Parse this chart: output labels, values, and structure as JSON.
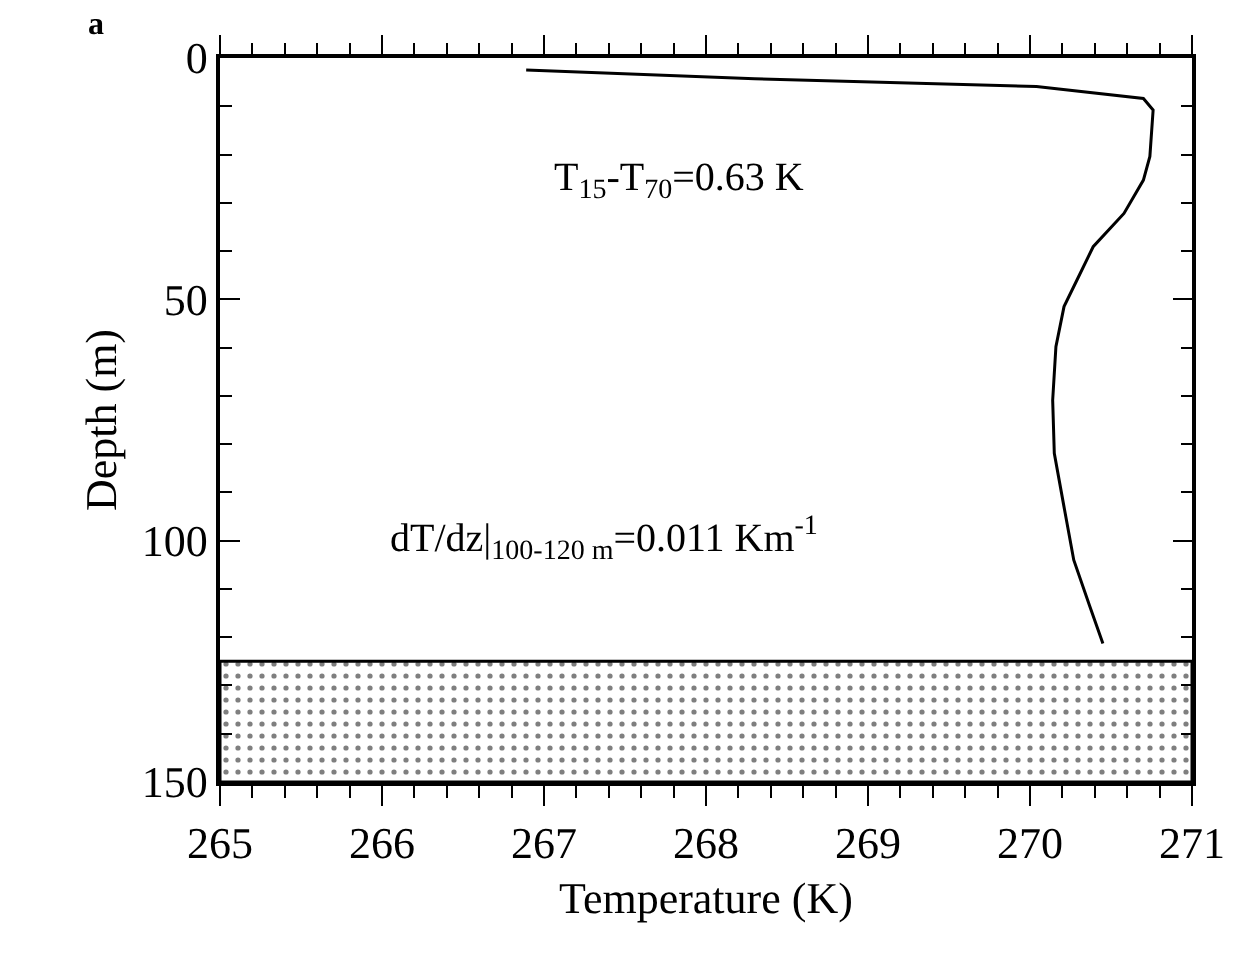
{
  "chart_data": {
    "type": "line",
    "xlabel": "Temperature (K)",
    "ylabel": "Depth (m)",
    "series": [
      {
        "color": "#000000",
        "x": [
          266.89,
          268.3,
          270.04,
          270.7,
          270.76,
          270.74,
          270.7,
          270.58,
          270.39,
          270.29,
          270.21,
          270.16,
          270.14,
          270.15,
          270.21,
          270.27,
          270.37,
          270.45
        ],
        "values": [
          2.5,
          4.3,
          5.9,
          8.4,
          10.8,
          20.4,
          25.3,
          32.2,
          39.1,
          46,
          51.5,
          59.8,
          70.9,
          81.9,
          93,
          104,
          113.7,
          121.3
        ]
      }
    ],
    "xlim": [
      265,
      271
    ],
    "ylim": [
      150,
      0
    ],
    "xticks": [
      265,
      {
        "value": 265.2,
        "label": null
      },
      {
        "value": 265.4,
        "label": null
      },
      {
        "value": 265.6,
        "label": null
      },
      {
        "value": 265.8,
        "label": null
      },
      266,
      {
        "value": 266.2,
        "label": null
      },
      {
        "value": 266.4,
        "label": null
      },
      {
        "value": 266.6,
        "label": null
      },
      {
        "value": 266.8,
        "label": null
      },
      267,
      {
        "value": 267.2,
        "label": null
      },
      {
        "value": 267.4,
        "label": null
      },
      {
        "value": 267.6,
        "label": null
      },
      {
        "value": 267.8,
        "label": null
      },
      268,
      {
        "value": 268.2,
        "label": null
      },
      {
        "value": 268.4,
        "label": null
      },
      {
        "value": 268.6,
        "label": null
      },
      {
        "value": 268.8,
        "label": null
      },
      269,
      {
        "value": 269.2,
        "label": null
      },
      {
        "value": 269.4,
        "label": null
      },
      {
        "value": 269.6,
        "label": null
      },
      {
        "value": 269.8,
        "label": null
      },
      270,
      {
        "value": 270.2,
        "label": null
      },
      {
        "value": 270.4,
        "label": null
      },
      {
        "value": 270.6,
        "label": null
      },
      {
        "value": 270.8,
        "label": null
      },
      271
    ],
    "yticks": [
      0,
      {
        "value": 10,
        "label": null
      },
      {
        "value": 20,
        "label": null
      },
      {
        "value": 30,
        "label": null
      },
      {
        "value": 40,
        "label": null
      },
      50,
      {
        "value": 60,
        "label": null
      },
      {
        "value": 70,
        "label": null
      },
      {
        "value": 80,
        "label": null
      },
      {
        "value": 90,
        "label": null
      },
      100,
      {
        "value": 110,
        "label": null
      },
      {
        "value": 120,
        "label": null
      },
      {
        "value": 130,
        "label": null
      },
      {
        "value": 140,
        "label": null
      },
      150
    ],
    "bands": [
      {
        "axis": "y",
        "from": 125,
        "to": 150,
        "color": "#000000"
      }
    ],
    "annotations": [
      "a",
      "T$_{15}$-T$_{70}$=0.63 K",
      "dT/dz|$_{100-120 m}$=0.011 Km$^{-1}$"
    ],
    "marker": "none",
    "line_style": "solid"
  }
}
